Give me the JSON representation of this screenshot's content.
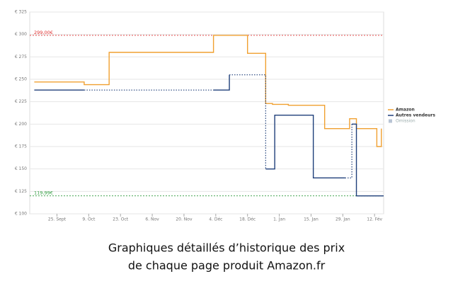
{
  "chart_data": {
    "type": "line",
    "step": true,
    "caption": [
      "Graphiques détaillés d’historique des prix",
      "de chaque page produit Amazon.fr"
    ],
    "x": [],
    "series": [
      {
        "name": "Amazon",
        "color": "#f0a030",
        "x": [
          -10,
          12,
          23,
          69,
          84,
          92,
          95,
          102,
          118,
          129,
          132,
          141,
          143
        ],
        "values": [
          247,
          244,
          280,
          299,
          279,
          223,
          222,
          221,
          195,
          206,
          195,
          175,
          195
        ]
      },
      {
        "name": "Autres vendeurs",
        "color": "#1f3f7a",
        "x": [
          -10,
          12,
          13,
          69,
          76,
          77,
          92,
          96,
          113,
          127,
          128,
          130,
          132,
          144
        ],
        "values": [
          238,
          238,
          null,
          238,
          255,
          null,
          150,
          210,
          140,
          140,
          null,
          200,
          120,
          120
        ]
      }
    ],
    "omission": {
      "name": "Omission",
      "color": "#b8c4d4"
    },
    "reference_lines": [
      {
        "value": 299,
        "label": "299,00€",
        "color": "#e03030"
      },
      {
        "value": 119.99,
        "label": "119,99€",
        "color": "#2a9a3a"
      }
    ],
    "xlim": [
      -12,
      144
    ],
    "xticks": [
      {
        "value": 0,
        "label": "25. Sept"
      },
      {
        "value": 14,
        "label": "9. Oct"
      },
      {
        "value": 28,
        "label": "23. Oct"
      },
      {
        "value": 42,
        "label": "6. Nov"
      },
      {
        "value": 56,
        "label": "20. Nov"
      },
      {
        "value": 70,
        "label": "4. Déc"
      },
      {
        "value": 84,
        "label": "18. Déc"
      },
      {
        "value": 98,
        "label": "1. Jan"
      },
      {
        "value": 112,
        "label": "15. Jan"
      },
      {
        "value": 126,
        "label": "29. Jan"
      },
      {
        "value": 140,
        "label": "12. Fév"
      }
    ],
    "ylim": [
      100,
      325
    ],
    "yticks": [
      {
        "value": 100,
        "label": "€ 100"
      },
      {
        "value": 125,
        "label": "€ 125"
      },
      {
        "value": 150,
        "label": "€ 150"
      },
      {
        "value": 175,
        "label": "€ 175"
      },
      {
        "value": 200,
        "label": "€ 200"
      },
      {
        "value": 225,
        "label": "€ 225"
      },
      {
        "value": 250,
        "label": "€ 250"
      },
      {
        "value": 275,
        "label": "€ 275"
      },
      {
        "value": 300,
        "label": "€ 300"
      },
      {
        "value": 325,
        "label": "€ 325"
      }
    ],
    "grid": true,
    "legend": "right"
  }
}
